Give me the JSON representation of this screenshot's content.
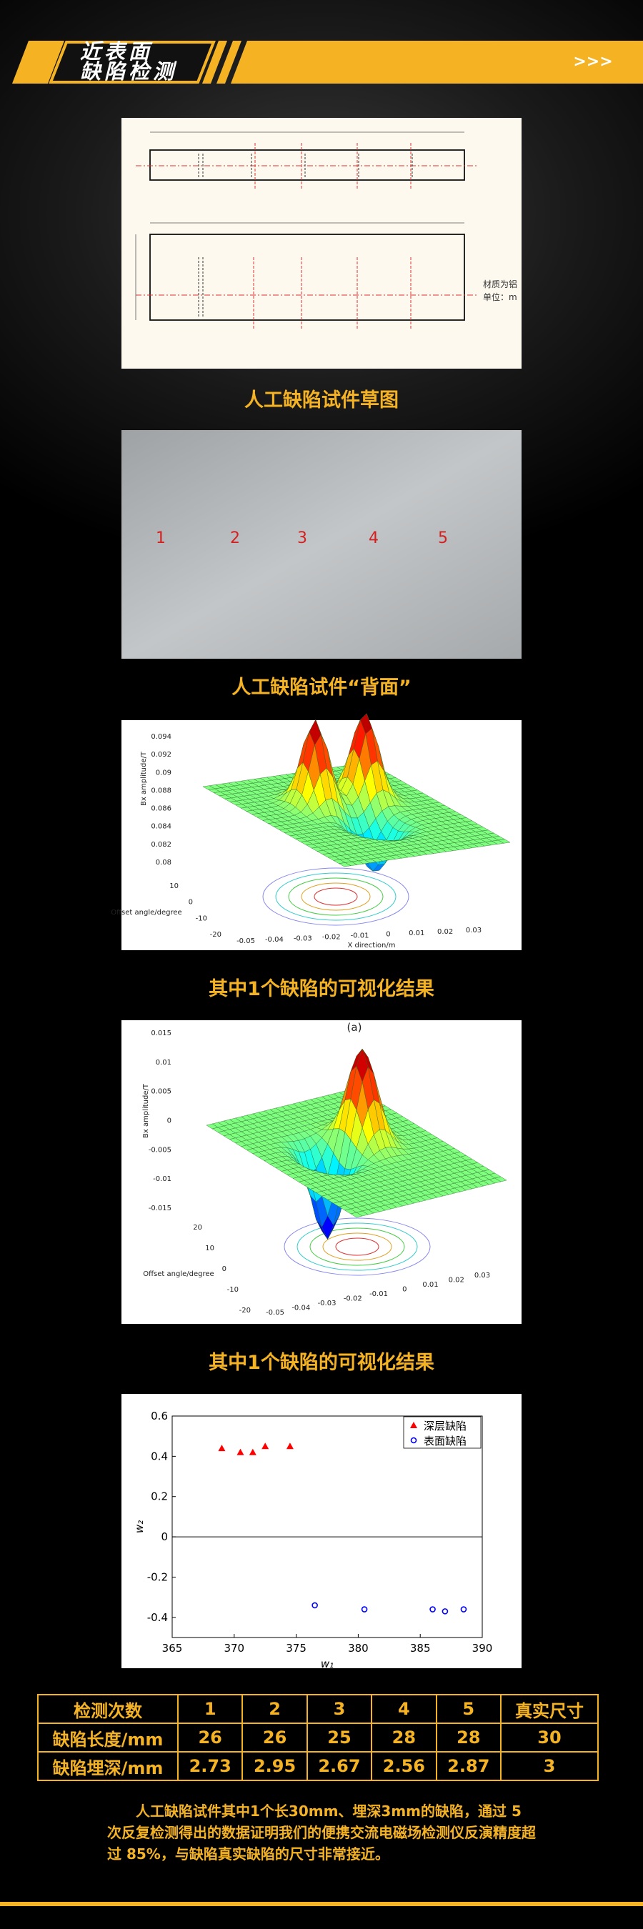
{
  "header": {
    "title_line1": "近表面",
    "title_line2": "缺陷检测",
    "arrow": ">>>"
  },
  "figures": [
    {
      "caption": "人工缺陷试件草图",
      "material": "材质为铝",
      "unit": "单位：m"
    },
    {
      "caption": "人工缺陷试件“背面”",
      "labels": [
        "1",
        "2",
        "3",
        "4",
        "5"
      ]
    },
    {
      "caption": "其中1个缺陷的可视化结果",
      "z_label": "Bx amplitude/T",
      "y_label": "Offset angle/degree",
      "x_label": "X direction/m",
      "z_ticks": [
        "0.094",
        "0.092",
        "0.09",
        "0.088",
        "0.086",
        "0.084",
        "0.082",
        "0.08"
      ],
      "y_ticks": [
        "10",
        "0",
        "-10",
        "-20"
      ],
      "x_ticks": [
        "-0.05",
        "-0.04",
        "-0.03",
        "-0.02",
        "-0.01",
        "0",
        "0.01",
        "0.02",
        "0.03"
      ]
    },
    {
      "caption": "其中1个缺陷的可视化结果",
      "tag": "(a)",
      "z_label": "Bx amplitude/T",
      "y_label": "Offset angle/degree",
      "z_ticks": [
        "0.015",
        "0.01",
        "0.005",
        "0",
        "-0.005",
        "-0.01",
        "-0.015"
      ],
      "y_ticks": [
        "20",
        "10",
        "0",
        "-10",
        "-20"
      ],
      "x_ticks": [
        "-0.05",
        "-0.04",
        "-0.03",
        "-0.02",
        "-0.01",
        "0",
        "0.01",
        "0.02",
        "0.03"
      ]
    }
  ],
  "chart_data": {
    "type": "scatter",
    "x_label": "w₁",
    "y_label": "w₂",
    "xlim": [
      365,
      390
    ],
    "ylim": [
      -0.5,
      0.6
    ],
    "xticks": [
      365,
      370,
      375,
      380,
      385,
      390
    ],
    "yticks": [
      0.6,
      0.4,
      0.2,
      0,
      -0.2,
      -0.4
    ],
    "zero_line": true,
    "legend": "upper right",
    "series": [
      {
        "name": "深层缺陷",
        "color": "#ff0000",
        "marker": "triangle",
        "x": [
          369,
          370.5,
          371.5,
          372.5,
          374.5
        ],
        "values": [
          0.44,
          0.42,
          0.42,
          0.45,
          0.45
        ]
      },
      {
        "name": "表面缺陷",
        "color": "#0000ff",
        "marker": "circle",
        "x": [
          376.5,
          380.5,
          386,
          387,
          388.5
        ],
        "values": [
          -0.34,
          -0.36,
          -0.36,
          -0.37,
          -0.36
        ]
      }
    ]
  },
  "table": {
    "header": [
      "检测次数",
      "1",
      "2",
      "3",
      "4",
      "5",
      "真实尺寸"
    ],
    "rows": [
      [
        "缺陷长度/mm",
        "26",
        "26",
        "25",
        "28",
        "28",
        "30"
      ],
      [
        "缺陷埋深/mm",
        "2.73",
        "2.95",
        "2.67",
        "2.56",
        "2.87",
        "3"
      ]
    ]
  },
  "note": "人工缺陷试件其中1个长30mm、埋深3mm的缺陷，通过 5 次反复检测得出的数据证明我们的便携交流电磁场检测仪反演精度超过 85%，与缺陷真实缺陷的尺寸非常接近。"
}
